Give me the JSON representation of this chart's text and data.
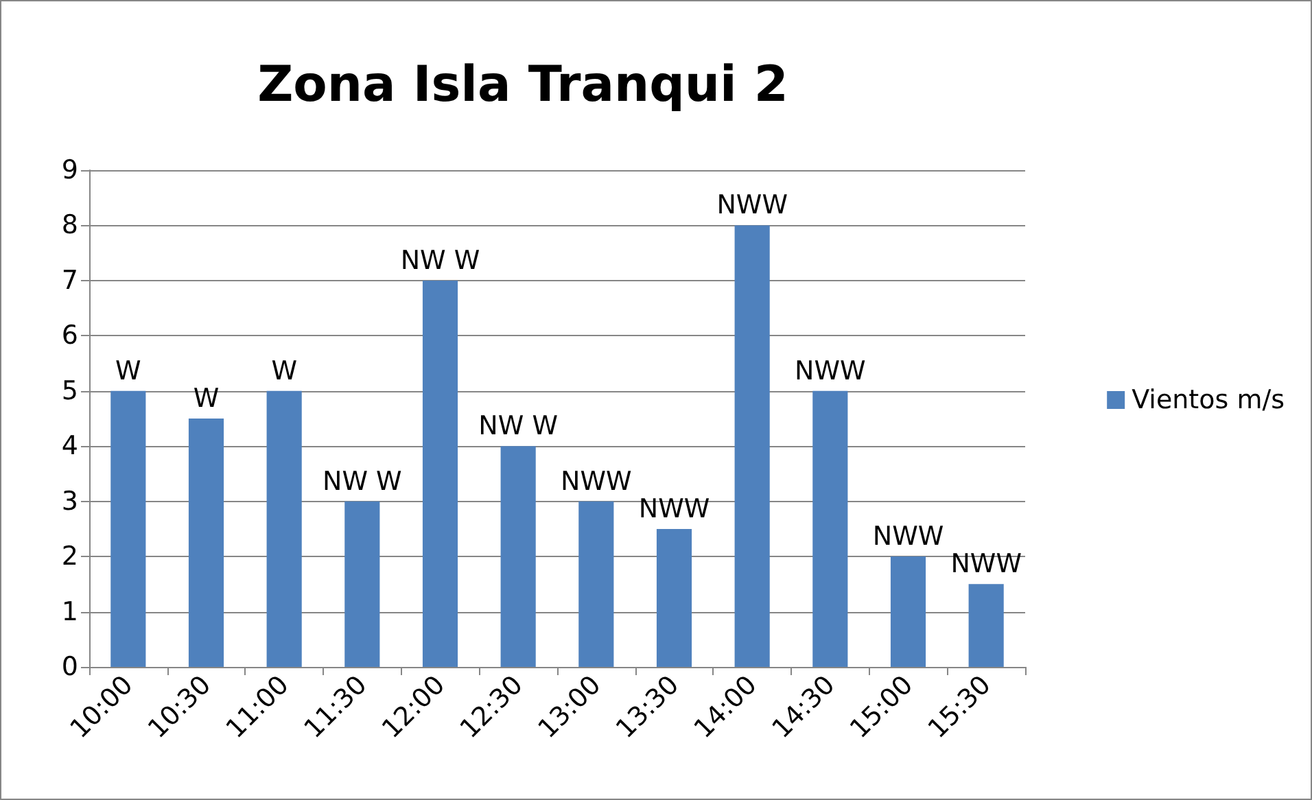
{
  "chart_data": {
    "type": "bar",
    "title": "Zona Isla Tranqui 2",
    "categories": [
      "10:00",
      "10:30",
      "11:00",
      "11:30",
      "12:00",
      "12:30",
      "13:00",
      "13:30",
      "14:00",
      "14:30",
      "15:00",
      "15:30"
    ],
    "series": [
      {
        "name": "Vientos m/s",
        "color": "#4f81bd",
        "values": [
          5,
          4.5,
          5,
          3,
          7,
          4,
          3,
          2.5,
          8,
          5,
          2,
          1.5
        ],
        "value_labels": [
          "W",
          "W",
          "W",
          "NW W",
          "NW W",
          "NW W",
          "NWW",
          "NWW",
          "NWW",
          "NWW",
          "NWW",
          "NWW"
        ]
      }
    ],
    "ylim": [
      0,
      9
    ],
    "yticks": [
      0,
      1,
      2,
      3,
      4,
      5,
      6,
      7,
      8,
      9
    ],
    "grid": "y",
    "legend": "right"
  }
}
